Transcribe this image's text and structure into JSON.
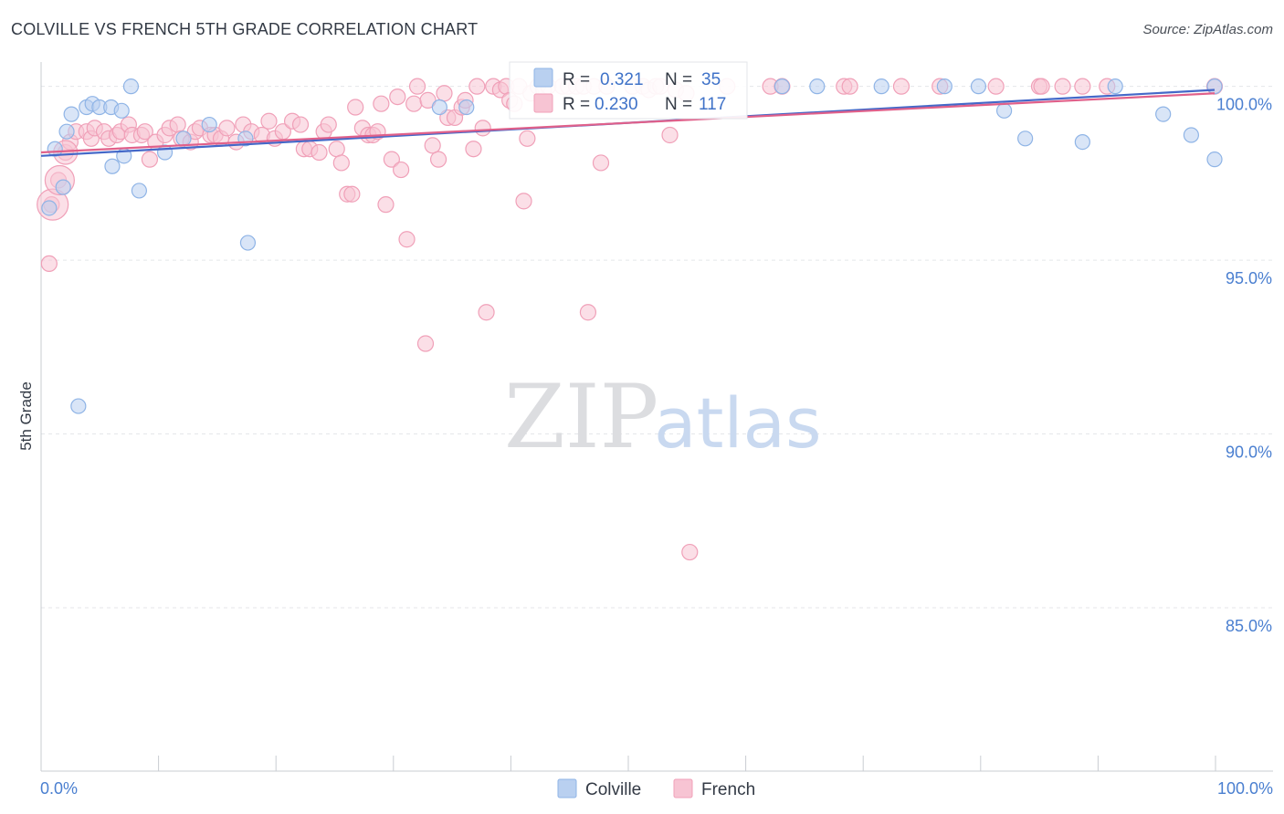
{
  "title": "COLVILLE VS FRENCH 5TH GRADE CORRELATION CHART",
  "source": "Source: ZipAtlas.com",
  "watermark": {
    "zip": "ZIP",
    "atlas": "atlas"
  },
  "chart_data": {
    "type": "scatter",
    "ylabel": "5th Grade",
    "xlim": [
      0,
      100
    ],
    "ylim": [
      80.3,
      100.7
    ],
    "y_ticks": [
      {
        "value": 100,
        "label": "100.0%"
      },
      {
        "value": 95,
        "label": "95.0%"
      },
      {
        "value": 90,
        "label": "90.0%"
      },
      {
        "value": 85,
        "label": "85.0%"
      }
    ],
    "x_tick_labels": {
      "left": "0.0%",
      "right": "100.0%"
    },
    "grid": true,
    "legend_position": "bottom-center",
    "stats": [
      {
        "r_label": "R =",
        "r_value": "0.321",
        "n_label": "N =",
        "n_value": "35"
      },
      {
        "r_label": "R =",
        "r_value": "0.230",
        "n_label": "N =",
        "n_value": "117"
      }
    ],
    "series": [
      {
        "name": "Colville",
        "color": "#8fb4e6",
        "fill": "#b9d0f0",
        "line_color": "#4468c8",
        "trend": [
          [
            0,
            98.0
          ],
          [
            100,
            99.9
          ]
        ],
        "points": [
          [
            0.3,
            96.5
          ],
          [
            0.8,
            98.2
          ],
          [
            1.5,
            97.1
          ],
          [
            1.8,
            98.7
          ],
          [
            2.2,
            99.2
          ],
          [
            2.8,
            90.8
          ],
          [
            3.5,
            99.4
          ],
          [
            4.0,
            99.5
          ],
          [
            4.6,
            99.4
          ],
          [
            5.6,
            99.4
          ],
          [
            5.7,
            97.7
          ],
          [
            6.5,
            99.3
          ],
          [
            6.7,
            98.0
          ],
          [
            7.3,
            100.0
          ],
          [
            8.0,
            97.0
          ],
          [
            10.2,
            98.1
          ],
          [
            11.8,
            98.5
          ],
          [
            14.0,
            98.9
          ],
          [
            17.1,
            98.5
          ],
          [
            17.3,
            95.5
          ],
          [
            33.7,
            99.4
          ],
          [
            36.0,
            99.4
          ],
          [
            63.0,
            100.0
          ],
          [
            66.0,
            100.0
          ],
          [
            71.5,
            100.0
          ],
          [
            76.9,
            100.0
          ],
          [
            79.8,
            100.0
          ],
          [
            82.0,
            99.3
          ],
          [
            83.8,
            98.5
          ],
          [
            88.7,
            98.4
          ],
          [
            91.5,
            100.0
          ],
          [
            95.6,
            99.2
          ],
          [
            98.0,
            98.6
          ],
          [
            100.0,
            100.0
          ],
          [
            100.0,
            97.9
          ]
        ]
      },
      {
        "name": "French",
        "color": "#f0a0b8",
        "fill": "#f7c4d3",
        "line_color": "#e0608a",
        "trend": [
          [
            0,
            98.1
          ],
          [
            100,
            99.8
          ]
        ],
        "points": [
          [
            0.3,
            94.9
          ],
          [
            0.5,
            96.6
          ],
          [
            1.1,
            97.3
          ],
          [
            1.7,
            98.1
          ],
          [
            2.1,
            98.4
          ],
          [
            2.6,
            98.7
          ],
          [
            3.5,
            98.7
          ],
          [
            3.9,
            98.5
          ],
          [
            4.2,
            98.8
          ],
          [
            5.0,
            98.7
          ],
          [
            5.4,
            98.5
          ],
          [
            6.1,
            98.6
          ],
          [
            6.4,
            98.7
          ],
          [
            7.1,
            98.9
          ],
          [
            7.4,
            98.6
          ],
          [
            8.2,
            98.6
          ],
          [
            8.5,
            98.7
          ],
          [
            8.9,
            97.9
          ],
          [
            9.4,
            98.4
          ],
          [
            10.2,
            98.6
          ],
          [
            10.6,
            98.8
          ],
          [
            11.3,
            98.9
          ],
          [
            11.6,
            98.5
          ],
          [
            12.4,
            98.4
          ],
          [
            12.8,
            98.7
          ],
          [
            13.2,
            98.8
          ],
          [
            14.1,
            98.6
          ],
          [
            14.5,
            98.6
          ],
          [
            15.0,
            98.5
          ],
          [
            15.5,
            98.8
          ],
          [
            16.3,
            98.4
          ],
          [
            16.9,
            98.9
          ],
          [
            17.6,
            98.7
          ],
          [
            18.5,
            98.6
          ],
          [
            19.1,
            99.0
          ],
          [
            19.6,
            98.5
          ],
          [
            20.3,
            98.7
          ],
          [
            21.1,
            99.0
          ],
          [
            21.8,
            98.9
          ],
          [
            22.1,
            98.2
          ],
          [
            22.6,
            98.2
          ],
          [
            23.4,
            98.1
          ],
          [
            23.8,
            98.7
          ],
          [
            24.2,
            98.9
          ],
          [
            24.9,
            98.2
          ],
          [
            25.3,
            97.8
          ],
          [
            25.8,
            96.9
          ],
          [
            26.2,
            96.9
          ],
          [
            26.5,
            99.4
          ],
          [
            27.1,
            98.8
          ],
          [
            27.6,
            98.6
          ],
          [
            28.0,
            98.6
          ],
          [
            28.4,
            98.7
          ],
          [
            28.7,
            99.5
          ],
          [
            29.1,
            96.6
          ],
          [
            29.6,
            97.9
          ],
          [
            30.1,
            99.7
          ],
          [
            30.4,
            97.6
          ],
          [
            30.9,
            95.6
          ],
          [
            31.5,
            99.5
          ],
          [
            31.8,
            100.0
          ],
          [
            32.5,
            92.6
          ],
          [
            32.7,
            99.6
          ],
          [
            33.1,
            98.3
          ],
          [
            33.6,
            97.9
          ],
          [
            34.1,
            99.8
          ],
          [
            34.4,
            99.1
          ],
          [
            35.0,
            99.1
          ],
          [
            35.6,
            99.4
          ],
          [
            35.9,
            99.6
          ],
          [
            36.6,
            98.2
          ],
          [
            36.9,
            100.0
          ],
          [
            37.4,
            98.8
          ],
          [
            37.7,
            93.5
          ],
          [
            38.3,
            100.0
          ],
          [
            38.9,
            99.9
          ],
          [
            39.4,
            100.0
          ],
          [
            39.7,
            99.6
          ],
          [
            40.1,
            99.5
          ],
          [
            40.5,
            100.0
          ],
          [
            40.9,
            96.7
          ],
          [
            41.2,
            98.5
          ],
          [
            41.5,
            99.8
          ],
          [
            42.1,
            100.0
          ],
          [
            42.6,
            99.9
          ],
          [
            43.0,
            100.0
          ],
          [
            44.2,
            100.0
          ],
          [
            44.7,
            100.0
          ],
          [
            45.4,
            100.0
          ],
          [
            46.0,
            100.0
          ],
          [
            46.4,
            93.5
          ],
          [
            46.9,
            100.0
          ],
          [
            47.5,
            97.8
          ],
          [
            48.0,
            100.0
          ],
          [
            50.2,
            100.0
          ],
          [
            51.1,
            100.0
          ],
          [
            51.6,
            99.9
          ],
          [
            52.2,
            100.0
          ],
          [
            52.6,
            100.0
          ],
          [
            53.4,
            98.6
          ],
          [
            53.9,
            99.9
          ],
          [
            54.8,
            99.8
          ],
          [
            55.1,
            86.6
          ],
          [
            58.3,
            100.0
          ],
          [
            62.0,
            100.0
          ],
          [
            63.0,
            100.0
          ],
          [
            68.3,
            100.0
          ],
          [
            68.8,
            100.0
          ],
          [
            73.2,
            100.0
          ],
          [
            76.5,
            100.0
          ],
          [
            81.3,
            100.0
          ],
          [
            85.0,
            100.0
          ],
          [
            85.2,
            100.0
          ],
          [
            87.0,
            100.0
          ],
          [
            88.7,
            100.0
          ],
          [
            90.8,
            100.0
          ],
          [
            100.0,
            100.0
          ]
        ]
      }
    ]
  }
}
